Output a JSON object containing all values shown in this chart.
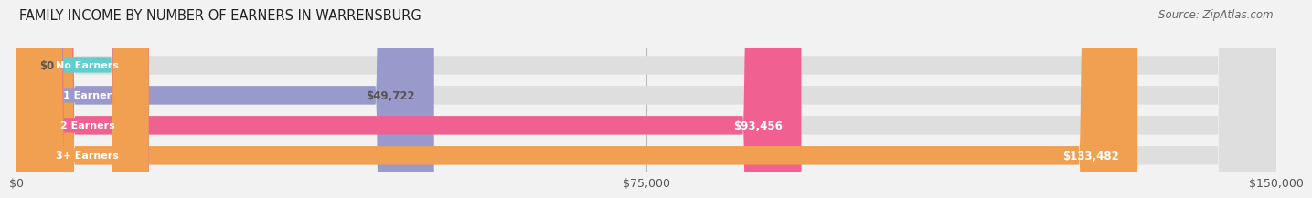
{
  "title": "FAMILY INCOME BY NUMBER OF EARNERS IN WARRENSBURG",
  "source": "Source: ZipAtlas.com",
  "categories": [
    "No Earners",
    "1 Earner",
    "2 Earners",
    "3+ Earners"
  ],
  "values": [
    0,
    49722,
    93456,
    133482
  ],
  "bar_colors": [
    "#5ecece",
    "#9999cc",
    "#f06090",
    "#f0a050"
  ],
  "value_labels": [
    "$0",
    "$49,722",
    "$93,456",
    "$133,482"
  ],
  "value_label_colors": [
    "#555555",
    "#555555",
    "#ffffff",
    "#ffffff"
  ],
  "x_max": 150000,
  "x_ticks": [
    0,
    75000,
    150000
  ],
  "x_tick_labels": [
    "$0",
    "$75,000",
    "$150,000"
  ],
  "background_color": "#f2f2f2",
  "title_fontsize": 10.5,
  "source_fontsize": 8.5
}
